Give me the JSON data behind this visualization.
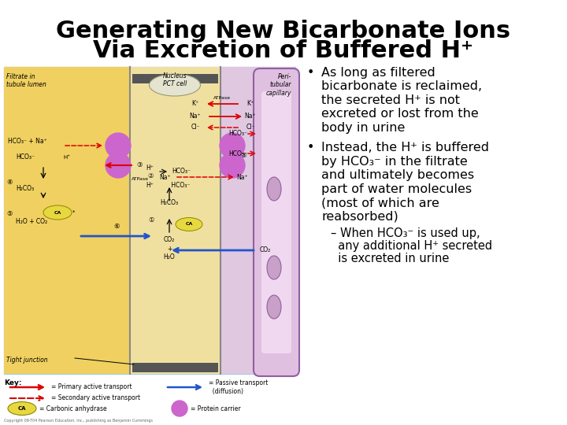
{
  "title_line1": "Generating New Bicarbonate Ions",
  "title_line2": "Via Excretion of Buffered H⁺",
  "bg_color": "#ffffff",
  "title_fontsize": 22,
  "title_color": "#000000",
  "text_fontsize": 11.5,
  "text_color": "#000000",
  "bullet1_lines": [
    "As long as filtered",
    "bicarbonate is reclaimed,",
    "the secreted H⁺ is not",
    "excreted or lost from the",
    "body in urine"
  ],
  "bullet2_lines": [
    "Instead, the H⁺ is buffered",
    "by HCO₃⁻ in the filtrate",
    "and ultimately becomes",
    "part of water molecules",
    "(most of which are",
    "reabsorbed)"
  ],
  "sub_bullet_lines": [
    "– When HCO₃⁻ is used up,",
    "  any additional H⁺ secreted",
    "  is excreted in urine"
  ],
  "diagram_yellow": "#f0d060",
  "diagram_beige": "#f0e0a0",
  "diagram_lavender": "#e0c8e0",
  "diagram_blue_bg": "#d0e8f0",
  "diagram_purple": "#cc66cc",
  "diagram_red": "#dd0000",
  "diagram_blue": "#2255cc",
  "diagram_ca_yellow": "#e8d840",
  "copyright": "Copyright 09-T04 Pearson Education, Inc., publishing as Benjamin Cummings"
}
